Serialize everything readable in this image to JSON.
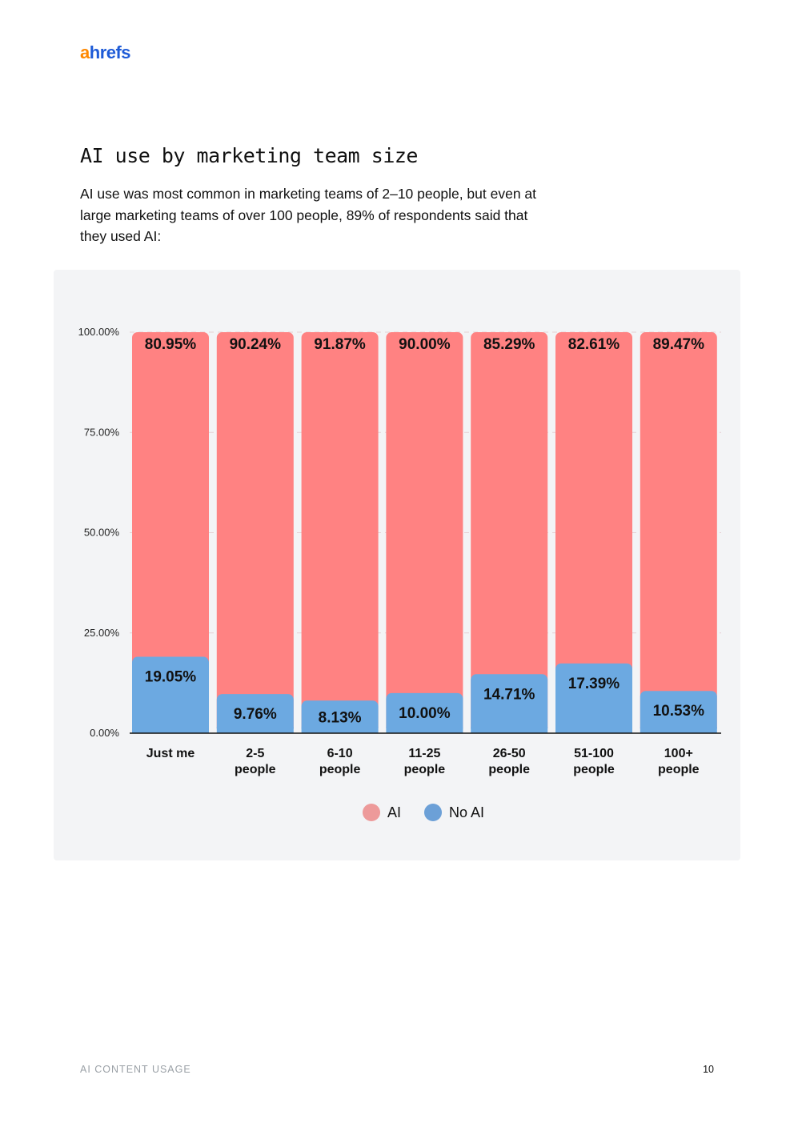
{
  "brand": {
    "logo_a": "a",
    "logo_rest": "hrefs"
  },
  "page": {
    "title": "AI use by marketing team size",
    "intro": "AI use was most common in marketing teams of 2–10 people, but even at large marketing teams of over 100 people, 89% of respondents said that they used AI:",
    "footer_left": "AI CONTENT USAGE",
    "page_number": "10"
  },
  "chart_data": {
    "type": "bar",
    "stacked": true,
    "categories": [
      [
        "Just me"
      ],
      [
        "2-5",
        "people"
      ],
      [
        "6-10",
        "people"
      ],
      [
        "11-25",
        "people"
      ],
      [
        "26-50",
        "people"
      ],
      [
        "51-100",
        "people"
      ],
      [
        "100+",
        "people"
      ]
    ],
    "series": [
      {
        "name": "No AI",
        "color": "#6ca9e1",
        "values": [
          19.05,
          9.76,
          8.13,
          10.0,
          14.71,
          17.39,
          10.53
        ],
        "labels": [
          "19.05%",
          "9.76%",
          "8.13%",
          "10.00%",
          "14.71%",
          "17.39%",
          "10.53%"
        ]
      },
      {
        "name": "AI",
        "color": "#ff8282",
        "values": [
          80.95,
          90.24,
          91.87,
          90.0,
          85.29,
          82.61,
          89.47
        ],
        "labels": [
          "80.95%",
          "90.24%",
          "91.87%",
          "90.00%",
          "85.29%",
          "82.61%",
          "89.47%"
        ]
      }
    ],
    "yticks": [
      "0.00%",
      "25.00%",
      "50.00%",
      "75.00%",
      "100.00%"
    ],
    "ylim": [
      0,
      100
    ],
    "grid": true,
    "legend": {
      "position": "bottom",
      "items": [
        {
          "name": "AI",
          "color": "#ed9a9a"
        },
        {
          "name": "No AI",
          "color": "#6ca0d7"
        }
      ]
    }
  }
}
